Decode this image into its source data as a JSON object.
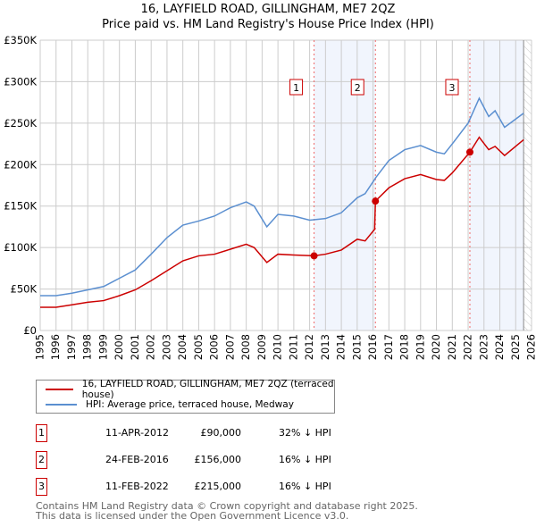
{
  "title": "16, LAYFIELD ROAD, GILLINGHAM, ME7 2QZ",
  "subtitle": "Price paid vs. HM Land Registry's House Price Index (HPI)",
  "chart_data": {
    "type": "line",
    "xlim": [
      1995,
      2026
    ],
    "ylim": [
      0,
      350000
    ],
    "yticks": [
      0,
      50000,
      100000,
      150000,
      200000,
      250000,
      300000,
      350000
    ],
    "ytick_labels": [
      "£0",
      "£50K",
      "£100K",
      "£150K",
      "£200K",
      "£250K",
      "£300K",
      "£350K"
    ],
    "xticks": [
      1995,
      1996,
      1997,
      1998,
      1999,
      2000,
      2001,
      2002,
      2003,
      2004,
      2005,
      2006,
      2007,
      2008,
      2009,
      2010,
      2011,
      2012,
      2013,
      2014,
      2015,
      2016,
      2017,
      2018,
      2019,
      2020,
      2021,
      2022,
      2023,
      2024,
      2025,
      2026
    ],
    "grid": true,
    "series": [
      {
        "name": "16, LAYFIELD ROAD, GILLINGHAM, ME7 2QZ (terraced house)",
        "color": "#cc0000",
        "x": [
          1995,
          1996,
          1997,
          1998,
          1999,
          2000,
          2001,
          2002,
          2003,
          2004,
          2005,
          2006,
          2007,
          2008,
          2008.5,
          2009.3,
          2010,
          2011,
          2012.28,
          2013,
          2014,
          2015,
          2015.5,
          2016.1,
          2016.15,
          2017,
          2018,
          2019,
          2020,
          2020.5,
          2021,
          2022.11,
          2022.7,
          2023.3,
          2023.7,
          2024.3,
          2025.5
        ],
        "y": [
          28000,
          28000,
          31000,
          34000,
          36000,
          42000,
          49000,
          60000,
          72000,
          84000,
          90000,
          92000,
          98000,
          104000,
          100000,
          82000,
          92000,
          91000,
          90000,
          92000,
          97000,
          110000,
          108000,
          122000,
          156000,
          172000,
          183000,
          188000,
          182000,
          181000,
          190000,
          215000,
          233000,
          218000,
          222000,
          211000,
          230000
        ]
      },
      {
        "name": "HPI: Average price, terraced house, Medway",
        "color": "#5b8fd0",
        "x": [
          1995,
          1996,
          1997,
          1998,
          1999,
          2000,
          2001,
          2002,
          2003,
          2004,
          2005,
          2006,
          2007,
          2008,
          2008.5,
          2009.3,
          2010,
          2011,
          2012,
          2013,
          2014,
          2015,
          2015.5,
          2016.2,
          2017,
          2018,
          2019,
          2020,
          2020.5,
          2021,
          2022,
          2022.7,
          2023.3,
          2023.7,
          2024.3,
          2025.5
        ],
        "y": [
          42000,
          42000,
          45000,
          49000,
          53000,
          63000,
          73000,
          92000,
          112000,
          127000,
          132000,
          138000,
          148000,
          155000,
          150000,
          125000,
          140000,
          138000,
          133000,
          135000,
          142000,
          160000,
          165000,
          185000,
          205000,
          218000,
          223000,
          215000,
          213000,
          225000,
          250000,
          280000,
          258000,
          265000,
          245000,
          262000
        ]
      }
    ],
    "sales": [
      {
        "label": "1",
        "date": "11-APR-2012",
        "x": 2012.28,
        "price": 90000,
        "price_label": "£90,000",
        "hpi": "32% ↓ HPI"
      },
      {
        "label": "2",
        "date": "24-FEB-2016",
        "x": 2016.15,
        "price": 156000,
        "price_label": "£156,000",
        "hpi": "16% ↓ HPI"
      },
      {
        "label": "3",
        "date": "11-FEB-2022",
        "x": 2022.11,
        "price": 215000,
        "price_label": "£215,000",
        "hpi": "16% ↓ HPI"
      }
    ],
    "data_end": 2025.5
  },
  "footer": [
    "Contains HM Land Registry data © Crown copyright and database right 2025.",
    "This data is licensed under the Open Government Licence v3.0."
  ]
}
